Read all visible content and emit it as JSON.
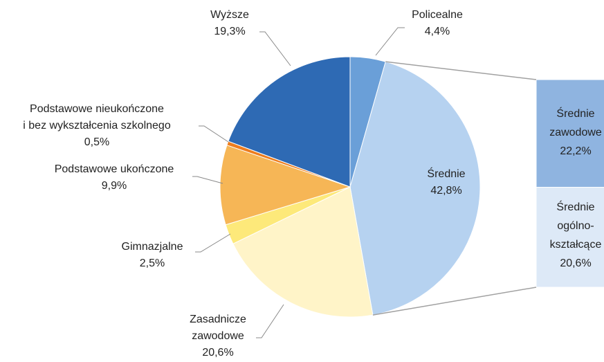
{
  "chart_data": {
    "type": "pie",
    "categories": [
      [
        "Policealne"
      ],
      [
        "Średnie"
      ],
      [
        "Zasadnicze",
        "zawodowe"
      ],
      [
        "Gimnazjalne"
      ],
      [
        "Podstawowe ukończone"
      ],
      [
        "Podstawowe nieukończone",
        "i bez wykształcenia szkolnego"
      ],
      [
        "Wyższe"
      ]
    ],
    "values": [
      4.4,
      42.8,
      20.6,
      2.5,
      9.9,
      0.5,
      19.3
    ],
    "value_labels": [
      "4,4%",
      "42,8%",
      "20,6%",
      "2,5%",
      "9,9%",
      "0,5%",
      "19,3%"
    ],
    "colors": [
      "#6a9fd8",
      "#b6d2f0",
      "#fff4c8",
      "#fde97a",
      "#f6b656",
      "#ed7d1e",
      "#2e6ab4"
    ],
    "bar": {
      "categories": [
        [
          "Średnie",
          "zawodowe"
        ],
        [
          "Średnie",
          "ogólno-",
          "kształcące"
        ]
      ],
      "values": [
        22.2,
        20.6
      ],
      "value_labels": [
        "22,2%",
        "20,6%"
      ],
      "colors": [
        "#8fb4e0",
        "#dde9f7"
      ]
    }
  }
}
